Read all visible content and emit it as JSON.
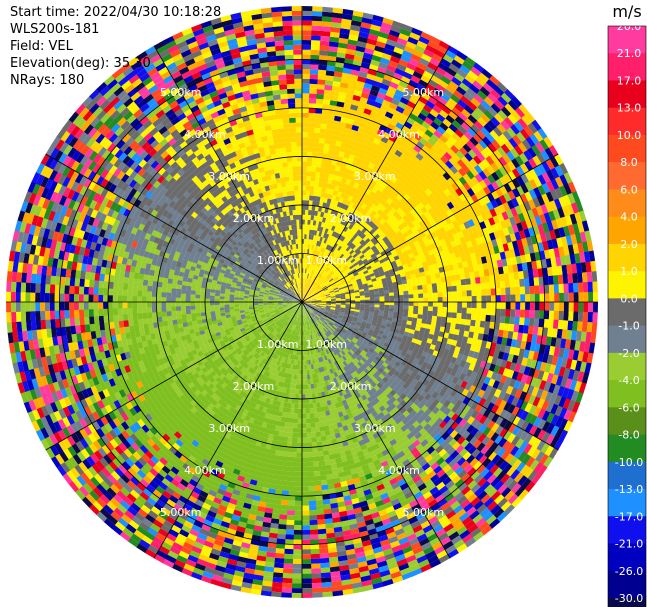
{
  "header": {
    "start_time": "Start time: 2022/04/30 10:18:28",
    "instrument": "WLS200s-181",
    "field": "Field: VEL",
    "elevation": "Elevation(deg): 35.30",
    "nrays": "NRays: 180"
  },
  "chart_data": {
    "type": "heatmap",
    "projection": "polar PPI",
    "field": "VEL",
    "units": "m/s",
    "nrays": 180,
    "elevation_deg": 35.3,
    "range_rings_km": [
      1,
      2,
      3,
      4,
      5
    ],
    "ring_labels": [
      "1.00km",
      "2.00km",
      "3.00km",
      "4.00km",
      "5.00km"
    ],
    "max_range_km": 6.1,
    "spokes_deg": [
      0,
      30,
      60,
      90,
      120,
      150
    ],
    "colorbar": {
      "label": "m/s",
      "ticks": [
        "26.0",
        "21.0",
        "17.0",
        "13.0",
        "10.0",
        "8.0",
        "6.0",
        "4.0",
        "2.0",
        "1.0",
        "0.0",
        "-1.0",
        "-2.0",
        "-4.0",
        "-6.0",
        "-8.0",
        "-10.0",
        "-13.0",
        "-17.0",
        "-21.0",
        "-26.0",
        "-30.0"
      ],
      "bands": [
        {
          "from": 26,
          "to": 30,
          "color": "#ff3ba0"
        },
        {
          "from": 21,
          "to": 26,
          "color": "#ff1f6b"
        },
        {
          "from": 17,
          "to": 21,
          "color": "#e8001c"
        },
        {
          "from": 13,
          "to": 17,
          "color": "#ff2a2a"
        },
        {
          "from": 10,
          "to": 13,
          "color": "#ff4a1f"
        },
        {
          "from": 8,
          "to": 10,
          "color": "#ff6a30"
        },
        {
          "from": 6,
          "to": 8,
          "color": "#ff8c1a"
        },
        {
          "from": 4,
          "to": 6,
          "color": "#ffa500"
        },
        {
          "from": 2,
          "to": 4,
          "color": "#ffd400"
        },
        {
          "from": 1,
          "to": 2,
          "color": "#fff400"
        },
        {
          "from": 0,
          "to": 1,
          "color": "#6b6b6b"
        },
        {
          "from": -1,
          "to": 0,
          "color": "#708090"
        },
        {
          "from": -2,
          "to": -1,
          "color": "#9acd32"
        },
        {
          "from": -4,
          "to": -2,
          "color": "#7fbf1f"
        },
        {
          "from": -6,
          "to": -4,
          "color": "#5a8f1a"
        },
        {
          "from": -8,
          "to": -6,
          "color": "#228b22"
        },
        {
          "from": -10,
          "to": -8,
          "color": "#1e6fcf"
        },
        {
          "from": -13,
          "to": -10,
          "color": "#1e90ff"
        },
        {
          "from": -17,
          "to": -13,
          "color": "#1010ee"
        },
        {
          "from": -21,
          "to": -17,
          "color": "#0000c0"
        },
        {
          "from": -26,
          "to": -21,
          "color": "#000090"
        },
        {
          "from": -30,
          "to": -26,
          "color": "#0a0a4a"
        }
      ]
    }
  }
}
